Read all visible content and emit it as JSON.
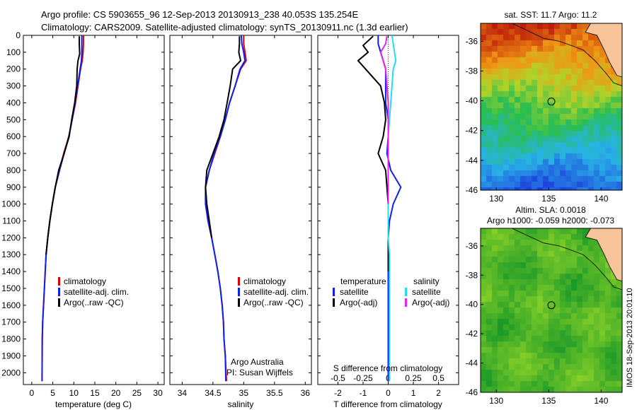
{
  "title_line1": "Argo profile: CS 5903655_96 12-Sep-2013 20130913_238 40.053S 135.254E",
  "title_line2": "Climatology: CARS2009. Satellite-adjusted climatology: synTS_20130911.nc (1.3d earlier)",
  "colors": {
    "climatology": "#dd0000",
    "satellite": "#1020ee",
    "argo": "#000000",
    "salinity_satellite": "#22ddee",
    "salinity_argo": "#ee22ee",
    "land": "#f7c49a"
  },
  "legend": {
    "climatology": "climatology",
    "satellite": "satellite-adj. clim.",
    "argo": "Argo(..raw -QC)",
    "diff_temperature_header": "temperature",
    "diff_salinity_header": "salinity",
    "diff_satellite": "satellite",
    "diff_argo": "Argo(-adj)"
  },
  "annotation": {
    "line1": "Argo Australia",
    "line2": "PI: Susan Wijffels"
  },
  "diff_axis_top_label": "S difference from climatology",
  "map_sst": {
    "title": "sat. SST: 11.7  Argo: 11.2"
  },
  "map_sla": {
    "title1": "Altim. SLA: 0.0018",
    "title2": "Argo h1000: -0.059  h2000: -0.073"
  },
  "footer": "IMOS 18-Sep-2013 20:01:10",
  "chart_data": [
    {
      "type": "line",
      "id": "temperature",
      "xlabel": "temperature (deg C)",
      "ylabel": "",
      "xlim": [
        -2,
        31.5
      ],
      "ylim": [
        2070,
        0
      ],
      "xticks": [
        0,
        5,
        10,
        15,
        20,
        25,
        30
      ],
      "yticks": [
        0,
        100,
        200,
        300,
        400,
        500,
        600,
        700,
        800,
        900,
        1000,
        1100,
        1200,
        1300,
        1400,
        1500,
        1600,
        1700,
        1800,
        1900,
        2000
      ],
      "series": [
        {
          "name": "climatology",
          "x": [
            12.3,
            12.3,
            12.2,
            12.0,
            11.6,
            11.0,
            10.4,
            9.6,
            8.8,
            7.6,
            6.6,
            5.6,
            4.9,
            4.3,
            3.8,
            3.4,
            3.2,
            3.0,
            2.8,
            2.6,
            2.5,
            2.45
          ],
          "y": [
            0,
            50,
            100,
            150,
            200,
            300,
            400,
            500,
            600,
            700,
            800,
            900,
            1000,
            1100,
            1200,
            1300,
            1400,
            1500,
            1600,
            1700,
            1800,
            2050
          ]
        },
        {
          "name": "satellite-adj. clim.",
          "x": [
            11.9,
            11.9,
            11.9,
            11.8,
            11.5,
            10.9,
            10.3,
            9.6,
            8.8,
            7.7,
            6.6,
            5.6,
            4.9,
            4.3,
            3.8,
            3.4,
            3.2,
            3.0,
            2.8,
            2.6,
            2.5,
            2.45
          ],
          "y": [
            0,
            50,
            100,
            150,
            200,
            300,
            400,
            500,
            600,
            700,
            800,
            900,
            1000,
            1100,
            1200,
            1300,
            1400,
            1500,
            1600,
            1700,
            1800,
            2050
          ]
        },
        {
          "name": "Argo(..raw -QC)",
          "x": [
            11.3,
            11.3,
            11.4,
            11.0,
            10.8,
            10.7,
            10.2,
            9.5,
            8.9,
            7.7,
            6.4,
            5.6,
            4.9,
            4.3,
            3.8,
            3.4
          ],
          "y": [
            5,
            50,
            110,
            150,
            200,
            300,
            400,
            500,
            600,
            700,
            800,
            900,
            1000,
            1100,
            1200,
            1300
          ]
        }
      ]
    },
    {
      "type": "line",
      "id": "salinity",
      "xlabel": "salinity",
      "ylabel": "",
      "xlim": [
        33.8,
        36.1
      ],
      "ylim": [
        2070,
        0
      ],
      "xticks": [
        34,
        34.5,
        35,
        35.5,
        36
      ],
      "series": [
        {
          "name": "climatology",
          "x": [
            35.0,
            35.0,
            35.02,
            35.04,
            34.95,
            34.86,
            34.77,
            34.7,
            34.62,
            34.53,
            34.44,
            34.38,
            34.38,
            34.42,
            34.48,
            34.53,
            34.58,
            34.62,
            34.65,
            34.67,
            34.68,
            34.7,
            34.72
          ],
          "y": [
            0,
            50,
            100,
            150,
            200,
            300,
            400,
            500,
            600,
            700,
            800,
            900,
            1000,
            1100,
            1200,
            1300,
            1400,
            1500,
            1600,
            1700,
            1800,
            1900,
            2050
          ]
        },
        {
          "name": "satellite-adj. clim.",
          "x": [
            34.96,
            34.97,
            35.0,
            35.02,
            34.94,
            34.86,
            34.77,
            34.7,
            34.62,
            34.52,
            34.44,
            34.38,
            34.38,
            34.42,
            34.48,
            34.53,
            34.58,
            34.62,
            34.65,
            34.67,
            34.68,
            34.7,
            34.71
          ],
          "y": [
            0,
            50,
            100,
            150,
            200,
            300,
            400,
            500,
            600,
            700,
            800,
            900,
            1000,
            1100,
            1200,
            1300,
            1400,
            1500,
            1600,
            1700,
            1800,
            1900,
            2050
          ]
        },
        {
          "name": "Argo(..raw -QC)",
          "x": [
            34.93,
            34.93,
            34.92,
            34.95,
            34.82,
            34.78,
            34.73,
            34.68,
            34.6,
            34.5,
            34.4,
            34.38,
            34.4,
            34.44,
            34.48
          ],
          "y": [
            5,
            50,
            100,
            150,
            200,
            300,
            400,
            500,
            600,
            700,
            800,
            900,
            1000,
            1100,
            1200
          ]
        }
      ]
    },
    {
      "type": "line",
      "id": "differences",
      "xlabel": "T difference from climatology",
      "ylabel": "",
      "xlim": [
        -2.8,
        2.8
      ],
      "ylim": [
        2070,
        0
      ],
      "xticks": [
        -2,
        -1,
        0,
        1,
        2
      ],
      "xticks_top": [
        -0.5,
        -0.25,
        0,
        0.25,
        0.5
      ],
      "series": [
        {
          "name": "temperature satellite",
          "x": [
            -0.4,
            -0.4,
            -0.3,
            -0.2,
            -0.1,
            -0.1,
            -0.1,
            0,
            0,
            -0.05,
            0.1,
            0.5,
            0.2,
            0.05,
            0,
            0,
            0,
            0,
            0,
            0,
            0,
            0
          ],
          "y": [
            0,
            50,
            100,
            150,
            200,
            300,
            400,
            500,
            600,
            700,
            800,
            900,
            1000,
            1100,
            1200,
            1300,
            1400,
            1500,
            1600,
            1700,
            1800,
            2050
          ]
        },
        {
          "name": "temperature Argo(-adj)",
          "x": [
            -0.6,
            -1.0,
            -0.8,
            -1.2,
            -0.9,
            -0.3,
            -0.15,
            -0.1,
            -0.2,
            -0.4,
            -0.1,
            -0.05,
            0,
            0,
            0,
            0,
            0
          ],
          "y": [
            5,
            60,
            100,
            150,
            200,
            300,
            400,
            500,
            600,
            700,
            800,
            900,
            1000,
            1100,
            1200,
            1300,
            1400
          ]
        },
        {
          "name": "salinity satellite",
          "x": [
            0.15,
            0.2,
            0.25,
            0.3,
            0.2,
            0.15,
            0.1,
            0.05,
            0,
            0,
            0,
            0,
            0,
            0,
            0,
            0.05,
            0.05,
            0.05,
            0.05,
            0.05,
            0.05
          ],
          "y": [
            0,
            50,
            100,
            150,
            200,
            300,
            400,
            500,
            600,
            700,
            800,
            900,
            1000,
            1100,
            1200,
            1300,
            1400,
            1500,
            1600,
            1700,
            2050
          ]
        },
        {
          "name": "salinity Argo(-adj)",
          "x": [
            -0.05,
            -0.1,
            -0.3,
            -0.2,
            -0.1,
            -0.05,
            0,
            0,
            0,
            0,
            0,
            0,
            0
          ],
          "y": [
            5,
            50,
            100,
            150,
            200,
            300,
            400,
            500,
            600,
            700,
            800,
            900,
            1000
          ]
        }
      ]
    },
    {
      "type": "heatmap",
      "id": "sst_map",
      "xlim": [
        128.5,
        142
      ],
      "ylim": [
        -46,
        -34.8
      ],
      "xticks": [
        130,
        135,
        140
      ],
      "yticks": [
        -36,
        -38,
        -40,
        -42,
        -44,
        -46
      ],
      "marker": {
        "lon": 135.25,
        "lat": -40.05
      }
    },
    {
      "type": "heatmap",
      "id": "sla_map",
      "xlim": [
        128.5,
        142
      ],
      "ylim": [
        -46,
        -34.8
      ],
      "xticks": [
        130,
        135,
        140
      ],
      "yticks": [
        -36,
        -38,
        -40,
        -42,
        -44,
        -46
      ],
      "marker": {
        "lon": 135.25,
        "lat": -40.05
      }
    }
  ]
}
